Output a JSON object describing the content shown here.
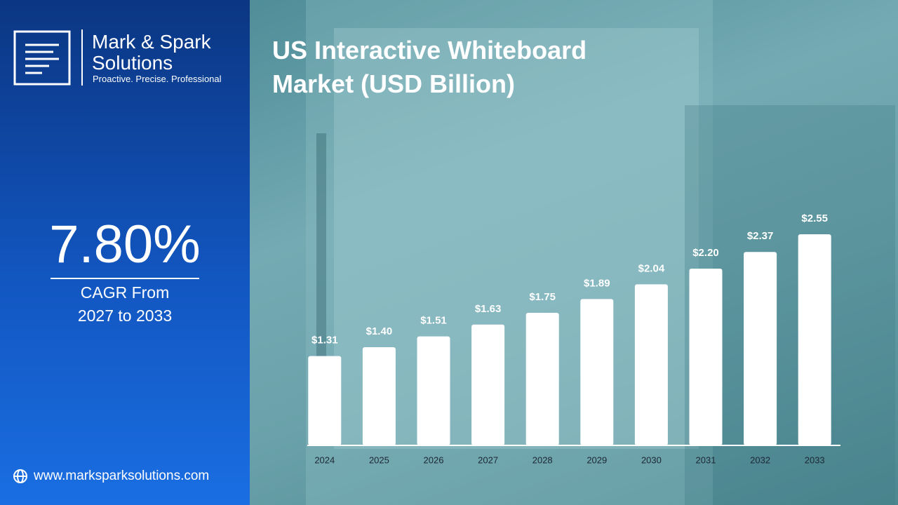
{
  "brand": {
    "name_line1": "Mark & Spark",
    "name_line2": "Solutions",
    "tagline": "Proactive. Precise. Professional"
  },
  "cagr": {
    "value": "7.80%",
    "label_line1": "CAGR From",
    "label_line2": "2027 to 2033"
  },
  "website": "www.marksparksolutions.com",
  "chart_data": {
    "type": "bar",
    "title": "US Interactive Whiteboard Market (USD Billion)",
    "categories": [
      "2024",
      "2025",
      "2026",
      "2027",
      "2028",
      "2029",
      "2030",
      "2031",
      "2032",
      "2033"
    ],
    "values": [
      1.31,
      1.4,
      1.51,
      1.63,
      1.75,
      1.89,
      2.04,
      2.2,
      2.37,
      2.55
    ],
    "value_labels": [
      "$1.31",
      "$1.40",
      "$1.51",
      "$1.63",
      "$1.75",
      "$1.89",
      "$2.04",
      "$2.20",
      "$2.37",
      "$2.55"
    ],
    "color": "#ffffff",
    "ylim": [
      0.4,
      2.7
    ]
  }
}
